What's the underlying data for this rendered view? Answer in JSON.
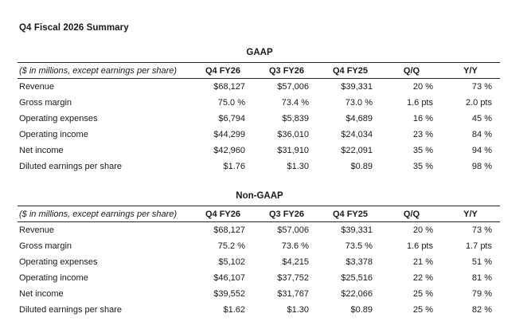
{
  "title": "Q4 Fiscal 2026 Summary",
  "columns": {
    "label": "($ in millions, except earnings per share)",
    "q4_fy26": "Q4 FY26",
    "q3_fy26": "Q3 FY26",
    "q4_fy25": "Q4 FY25",
    "qq": "Q/Q",
    "yy": "Y/Y"
  },
  "gaap": {
    "title": "GAAP",
    "rows": [
      {
        "label": "Revenue",
        "q4_fy26": "$68,127",
        "q3_fy26": "$57,006",
        "q4_fy25": "$39,331",
        "qq": "20 %",
        "yy": "73 %"
      },
      {
        "label": "Gross margin",
        "q4_fy26": "75.0 %",
        "q3_fy26": "73.4 %",
        "q4_fy25": "73.0 %",
        "qq": "1.6 pts",
        "yy": "2.0 pts"
      },
      {
        "label": "Operating expenses",
        "q4_fy26": "$6,794",
        "q3_fy26": "$5,839",
        "q4_fy25": "$4,689",
        "qq": "16 %",
        "yy": "45 %"
      },
      {
        "label": "Operating income",
        "q4_fy26": "$44,299",
        "q3_fy26": "$36,010",
        "q4_fy25": "$24,034",
        "qq": "23 %",
        "yy": "84 %"
      },
      {
        "label": "Net income",
        "q4_fy26": "$42,960",
        "q3_fy26": "$31,910",
        "q4_fy25": "$22,091",
        "qq": "35 %",
        "yy": "94 %"
      },
      {
        "label": "Diluted earnings per share",
        "q4_fy26": "$1.76",
        "q3_fy26": "$1.30",
        "q4_fy25": "$0.89",
        "qq": "35 %",
        "yy": "98 %"
      }
    ]
  },
  "non_gaap": {
    "title": "Non-GAAP",
    "rows": [
      {
        "label": "Revenue",
        "q4_fy26": "$68,127",
        "q3_fy26": "$57,006",
        "q4_fy25": "$39,331",
        "qq": "20 %",
        "yy": "73 %"
      },
      {
        "label": "Gross margin",
        "q4_fy26": "75.2 %",
        "q3_fy26": "73.6 %",
        "q4_fy25": "73.5 %",
        "qq": "1.6 pts",
        "yy": "1.7 pts"
      },
      {
        "label": "Operating expenses",
        "q4_fy26": "$5,102",
        "q3_fy26": "$4,215",
        "q4_fy25": "$3,378",
        "qq": "21 %",
        "yy": "51 %"
      },
      {
        "label": "Operating income",
        "q4_fy26": "$46,107",
        "q3_fy26": "$37,752",
        "q4_fy25": "$25,516",
        "qq": "22 %",
        "yy": "81 %"
      },
      {
        "label": "Net income",
        "q4_fy26": "$39,552",
        "q3_fy26": "$31,767",
        "q4_fy25": "$22,066",
        "qq": "25 %",
        "yy": "79 %"
      },
      {
        "label": "Diluted earnings per share",
        "q4_fy26": "$1.62",
        "q3_fy26": "$1.30",
        "q4_fy25": "$0.89",
        "qq": "25 %",
        "yy": "82 %"
      }
    ]
  }
}
